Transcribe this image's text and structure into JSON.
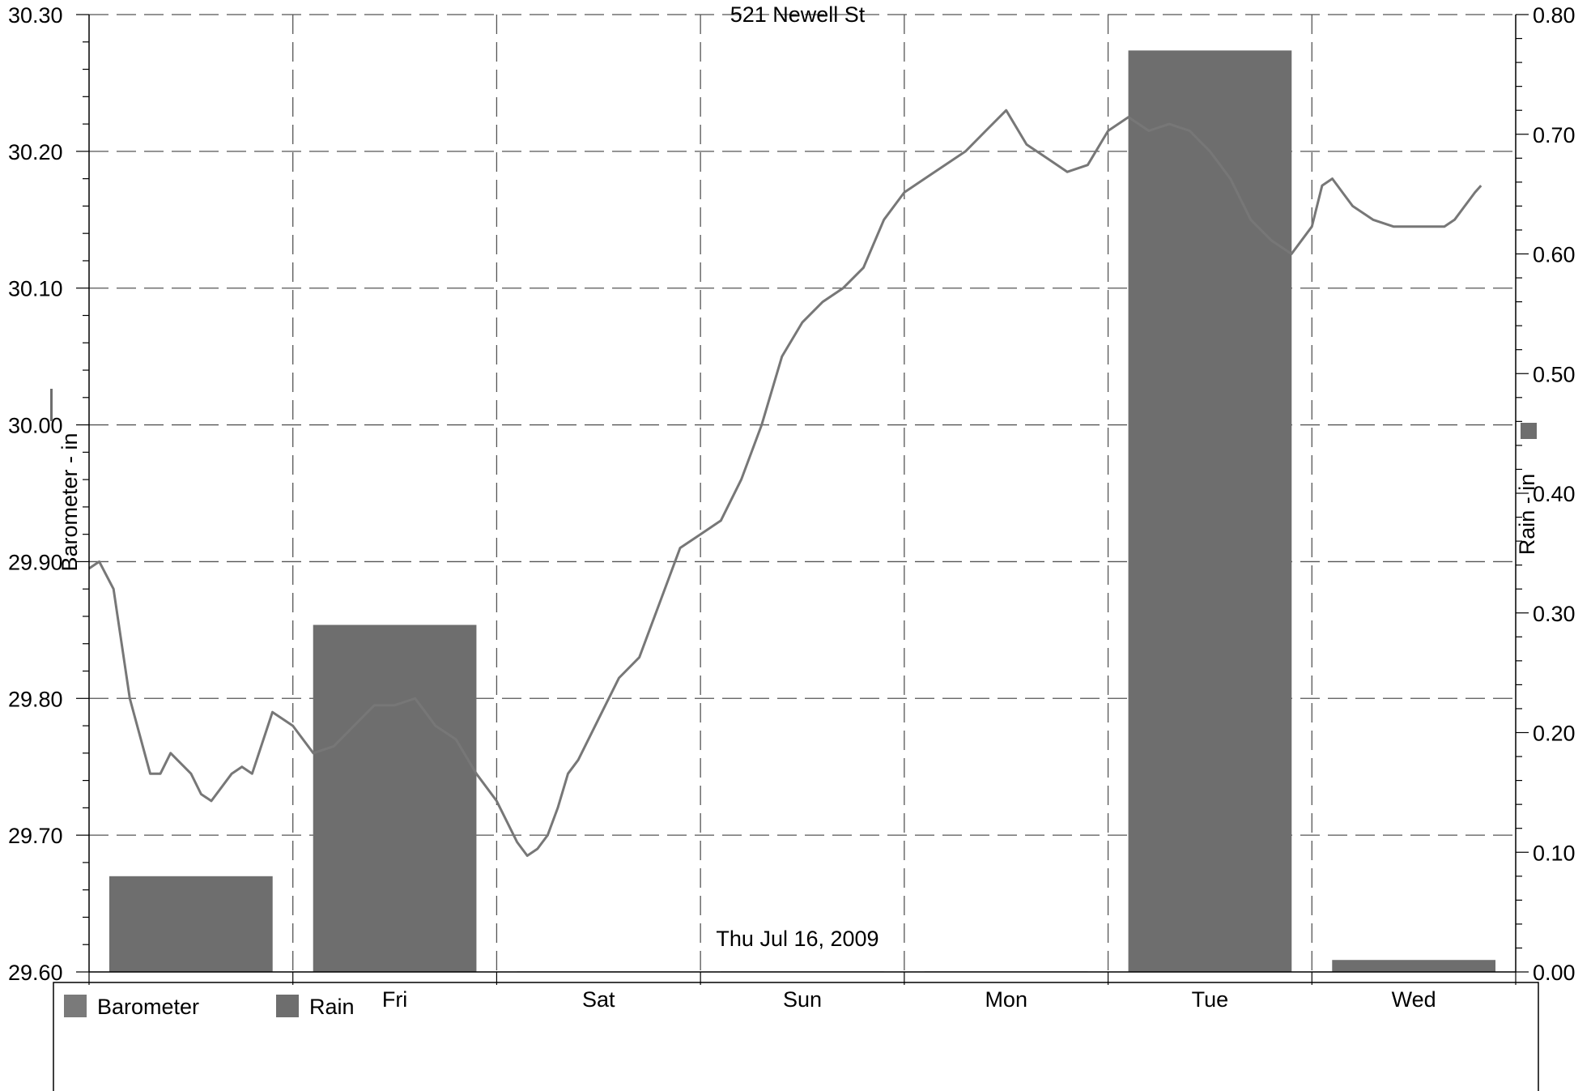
{
  "colors": {
    "series": "#6e6e6e",
    "grid": "#555555",
    "axis": "#000000",
    "background": "#ffffff"
  },
  "chart_data": {
    "type": "bar",
    "title": "521 Newell St",
    "annotation": "Thu Jul 16, 2009",
    "ylabel_left": "Barometer - in",
    "ylabel_right": "Rain - in",
    "y_left_range": [
      29.6,
      30.3
    ],
    "y_left_ticks": [
      "29.60",
      "29.70",
      "29.80",
      "29.90",
      "30.00",
      "30.10",
      "30.20",
      "30.30"
    ],
    "y_right_range": [
      0.0,
      0.8
    ],
    "y_right_ticks": [
      "0.00",
      "0.10",
      "0.20",
      "0.30",
      "0.40",
      "0.50",
      "0.60",
      "0.70",
      "0.80"
    ],
    "x_range_days": [
      0,
      7
    ],
    "day_labels": [
      "Fri",
      "Sat",
      "Sun",
      "Mon",
      "Tue",
      "Wed"
    ],
    "grid": true,
    "legend_position": "bottom",
    "legend": [
      "Barometer",
      "Rain"
    ],
    "series": [
      {
        "name": "Rain",
        "type": "bar",
        "values": [
          0.08,
          0.29,
          0.0,
          0.0,
          0.0,
          0.77,
          0.01
        ]
      },
      {
        "name": "Barometer",
        "type": "line",
        "x": [
          0.0,
          0.05,
          0.12,
          0.2,
          0.3,
          0.35,
          0.4,
          0.5,
          0.55,
          0.6,
          0.7,
          0.75,
          0.8,
          0.9,
          1.0,
          1.1,
          1.2,
          1.3,
          1.4,
          1.5,
          1.6,
          1.7,
          1.8,
          1.9,
          2.0,
          2.1,
          2.15,
          2.2,
          2.25,
          2.3,
          2.35,
          2.4,
          2.5,
          2.6,
          2.7,
          2.8,
          2.9,
          3.0,
          3.1,
          3.2,
          3.3,
          3.4,
          3.5,
          3.6,
          3.7,
          3.8,
          3.9,
          4.0,
          4.1,
          4.2,
          4.3,
          4.4,
          4.5,
          4.6,
          4.7,
          4.8,
          4.9,
          5.0,
          5.1,
          5.2,
          5.3,
          5.4,
          5.5,
          5.6,
          5.7,
          5.8,
          5.9,
          6.0,
          6.05,
          6.1,
          6.15,
          6.2,
          6.3,
          6.4,
          6.5,
          6.6,
          6.65,
          6.7,
          6.75,
          6.8,
          6.83
        ],
        "values": [
          29.895,
          29.9,
          29.88,
          29.8,
          29.745,
          29.745,
          29.76,
          29.745,
          29.73,
          29.725,
          29.745,
          29.75,
          29.745,
          29.79,
          29.78,
          29.76,
          29.765,
          29.78,
          29.795,
          29.795,
          29.8,
          29.78,
          29.77,
          29.745,
          29.725,
          29.695,
          29.685,
          29.69,
          29.7,
          29.72,
          29.745,
          29.755,
          29.785,
          29.815,
          29.83,
          29.87,
          29.91,
          29.92,
          29.93,
          29.96,
          30.0,
          30.05,
          30.075,
          30.09,
          30.1,
          30.115,
          30.15,
          30.17,
          30.18,
          30.19,
          30.2,
          30.215,
          30.23,
          30.205,
          30.195,
          30.185,
          30.19,
          30.215,
          30.225,
          30.215,
          30.22,
          30.215,
          30.2,
          30.18,
          30.15,
          30.135,
          30.125,
          30.145,
          30.175,
          30.18,
          30.17,
          30.16,
          30.15,
          30.145,
          30.145,
          30.145,
          30.145,
          30.15,
          30.16,
          30.17,
          30.175
        ]
      }
    ]
  }
}
